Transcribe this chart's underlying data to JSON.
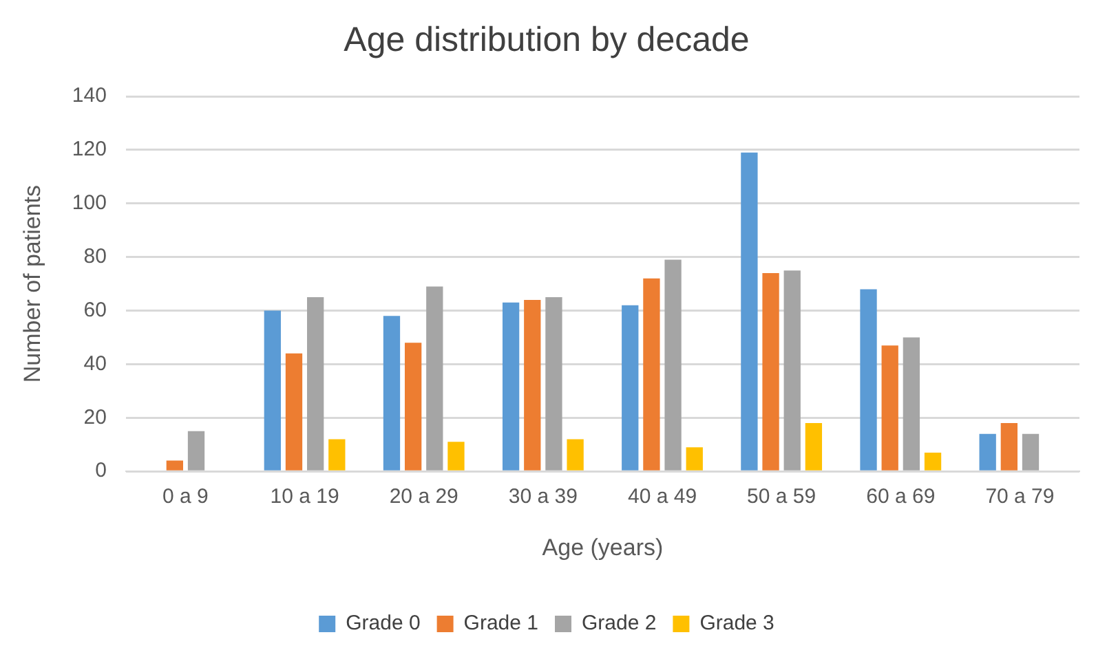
{
  "chart_data": {
    "type": "bar",
    "title": "Age distribution by decade",
    "xlabel": "Age (years)",
    "ylabel": "Number of patients",
    "categories": [
      "0 a 9",
      "10 a 19",
      "20 a 29",
      "30 a 39",
      "40 a 49",
      "50 a 59",
      "60 a 69",
      "70 a 79"
    ],
    "series": [
      {
        "name": "Grade 0",
        "color": "#5b9bd5",
        "values": [
          0,
          60,
          58,
          63,
          62,
          119,
          68,
          14
        ]
      },
      {
        "name": "Grade 1",
        "color": "#ed7d31",
        "values": [
          4,
          44,
          48,
          64,
          72,
          74,
          47,
          18
        ]
      },
      {
        "name": "Grade 2",
        "color": "#a5a5a5",
        "values": [
          15,
          65,
          69,
          65,
          79,
          75,
          50,
          14
        ]
      },
      {
        "name": "Grade 3",
        "color": "#ffc000",
        "values": [
          0,
          12,
          11,
          12,
          9,
          18,
          7,
          0
        ]
      }
    ],
    "ylim": [
      0,
      140
    ],
    "yticks": [
      0,
      20,
      40,
      60,
      80,
      100,
      120,
      140
    ],
    "grid": "y",
    "legend": "bottom"
  }
}
